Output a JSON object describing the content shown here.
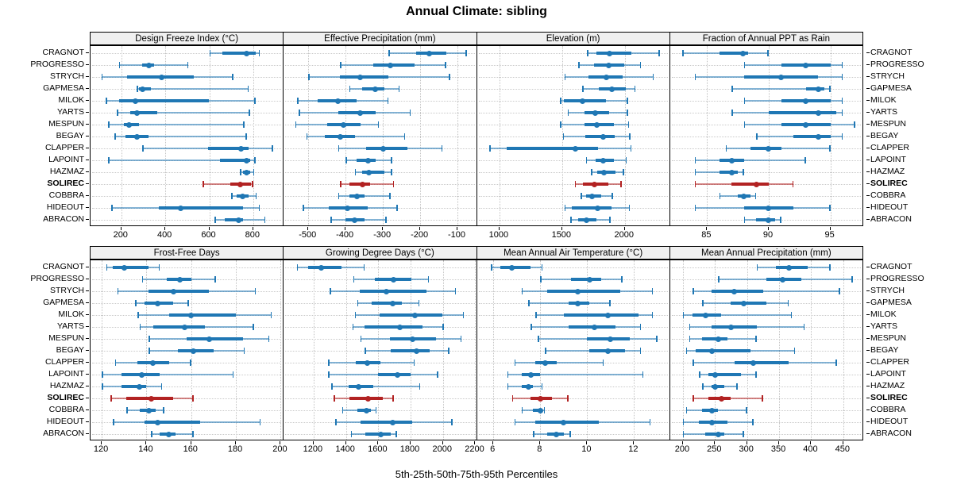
{
  "title": "Annual Climate: sibling",
  "caption": "5th-25th-50th-75th-95th Percentiles",
  "colors": {
    "series": "#1f77b4",
    "highlight": "#b22222",
    "strip_bg": "#f0f0f0",
    "grid_line": "#c6c6c6",
    "panel_border": "#000000"
  },
  "sites": [
    "CRAGNOT",
    "PROGRESSO",
    "STRYCH",
    "GAPMESA",
    "MILOK",
    "YARTS",
    "MESPUN",
    "BEGAY",
    "CLAPPER",
    "LAPOINT",
    "HAZMAZ",
    "SOLIREC",
    "COBBRA",
    "HIDEOUT",
    "ABRACON"
  ],
  "highlight_site": "SOLIREC",
  "chart_data": {
    "type": "dotplot",
    "subtype": "trellis-percentile-intervals",
    "percentiles": [
      "5th",
      "25th",
      "50th",
      "75th",
      "95th"
    ],
    "layout": {
      "rows": 2,
      "cols": 4,
      "grid": "dotted",
      "legend_position": "none"
    },
    "panels": [
      {
        "title": "Design Freeze Index (°C)",
        "grid_row": 0,
        "grid_col": 0,
        "xlim": [
          60,
          935
        ],
        "ticks": [
          200,
          400,
          600,
          800
        ],
        "values": [
          [
            600,
            660,
            770,
            810,
            830
          ],
          [
            190,
            295,
            325,
            350,
            505
          ],
          [
            110,
            225,
            385,
            530,
            710
          ],
          [
            270,
            280,
            295,
            335,
            780
          ],
          [
            130,
            190,
            265,
            600,
            810
          ],
          [
            180,
            240,
            270,
            365,
            785
          ],
          [
            140,
            210,
            235,
            280,
            760
          ],
          [
            170,
            220,
            270,
            325,
            770
          ],
          [
            295,
            595,
            745,
            780,
            890
          ],
          [
            140,
            650,
            770,
            785,
            810
          ],
          [
            740,
            755,
            770,
            785,
            805
          ],
          [
            570,
            695,
            740,
            790,
            800
          ],
          [
            700,
            725,
            750,
            780,
            815
          ],
          [
            155,
            370,
            470,
            755,
            830
          ],
          [
            625,
            670,
            735,
            755,
            855
          ]
        ]
      },
      {
        "title": "Effective Precipitation (mm)",
        "grid_row": 0,
        "grid_col": 1,
        "xlim": [
          -566,
          -50
        ],
        "ticks": [
          -500,
          -400,
          -300,
          -200,
          -100
        ],
        "values": [
          [
            -285,
            -210,
            -175,
            -130,
            -75
          ],
          [
            -415,
            -325,
            -280,
            -215,
            -130
          ],
          [
            -500,
            -415,
            -360,
            -285,
            -120
          ],
          [
            -390,
            -355,
            -320,
            -295,
            -255
          ],
          [
            -530,
            -475,
            -420,
            -370,
            -285
          ],
          [
            -525,
            -420,
            -360,
            -320,
            -225
          ],
          [
            -535,
            -450,
            -405,
            -360,
            -310
          ],
          [
            -505,
            -455,
            -415,
            -375,
            -240
          ],
          [
            -420,
            -345,
            -300,
            -235,
            -140
          ],
          [
            -400,
            -370,
            -340,
            -320,
            -275
          ],
          [
            -375,
            -355,
            -338,
            -295,
            -275
          ],
          [
            -415,
            -390,
            -355,
            -335,
            -270
          ],
          [
            -420,
            -390,
            -370,
            -350,
            -280
          ],
          [
            -515,
            -445,
            -395,
            -340,
            -260
          ],
          [
            -440,
            -400,
            -375,
            -350,
            -290
          ]
        ]
      },
      {
        "title": "Elevation (m)",
        "grid_row": 0,
        "grid_col": 2,
        "xlim": [
          820,
          2355
        ],
        "ticks": [
          1000,
          1500,
          2000
        ],
        "values": [
          [
            1700,
            1775,
            1880,
            2050,
            2280
          ],
          [
            1630,
            1755,
            1870,
            1995,
            2130
          ],
          [
            1520,
            1710,
            1850,
            1980,
            2230
          ],
          [
            1660,
            1795,
            1895,
            2005,
            2085
          ],
          [
            1485,
            1515,
            1665,
            1850,
            2025
          ],
          [
            1545,
            1680,
            1765,
            1875,
            2025
          ],
          [
            1485,
            1680,
            1775,
            1910,
            2035
          ],
          [
            1505,
            1685,
            1825,
            1920,
            2045
          ],
          [
            920,
            1055,
            1605,
            1785,
            2055
          ],
          [
            1690,
            1765,
            1830,
            1910,
            2015
          ],
          [
            1730,
            1780,
            1835,
            1925,
            1995
          ],
          [
            1600,
            1665,
            1760,
            1870,
            1975
          ],
          [
            1650,
            1690,
            1740,
            1810,
            1905
          ],
          [
            1520,
            1575,
            1785,
            1895,
            2040
          ],
          [
            1565,
            1625,
            1695,
            1775,
            1885
          ]
        ]
      },
      {
        "title": "Fraction of Annual PPT as Rain",
        "grid_row": 0,
        "grid_col": 3,
        "xlim": [
          82,
          97.6
        ],
        "ticks": [
          85,
          90,
          95
        ],
        "values": [
          [
            83,
            86,
            87.9,
            88.3,
            90
          ],
          [
            88,
            91,
            93,
            95,
            96
          ],
          [
            84,
            88,
            91,
            94,
            96
          ],
          [
            87,
            93,
            94,
            94.5,
            95
          ],
          [
            88,
            91,
            93,
            95,
            96
          ],
          [
            87,
            90,
            94,
            95.5,
            96
          ],
          [
            88,
            91,
            93,
            95,
            97
          ],
          [
            89,
            92,
            94,
            95,
            96
          ],
          [
            86.5,
            88.5,
            90,
            91,
            95
          ],
          [
            84,
            86,
            87,
            88,
            93
          ],
          [
            84,
            86,
            87,
            87.5,
            88
          ],
          [
            84,
            87,
            89,
            90,
            92
          ],
          [
            86,
            87.5,
            88,
            88.5,
            89
          ],
          [
            84,
            88,
            90,
            92,
            95
          ],
          [
            88,
            89,
            90,
            90.5,
            91
          ]
        ]
      },
      {
        "title": "Frost-Free Days",
        "grid_row": 1,
        "grid_col": 0,
        "xlim": [
          115,
          201
        ],
        "ticks": [
          120,
          140,
          160,
          180,
          200
        ],
        "values": [
          [
            122,
            125,
            130,
            141,
            146
          ],
          [
            138,
            149,
            155,
            160,
            171
          ],
          [
            127,
            141,
            152,
            168,
            189
          ],
          [
            135,
            139,
            145,
            152,
            159
          ],
          [
            136,
            150,
            160,
            180,
            196
          ],
          [
            137,
            143,
            157,
            166,
            188
          ],
          [
            141,
            158,
            168,
            183,
            195
          ],
          [
            141,
            154,
            161,
            170,
            184
          ],
          [
            126,
            136,
            143,
            150,
            160
          ],
          [
            120,
            129,
            138,
            146,
            179
          ],
          [
            120,
            129,
            137,
            140,
            147
          ],
          [
            124,
            131,
            142,
            152,
            161
          ],
          [
            131,
            137,
            141,
            144,
            148
          ],
          [
            125,
            139,
            145,
            164,
            191
          ],
          [
            142,
            146,
            150,
            153,
            161
          ]
        ]
      },
      {
        "title": "Growing Degree Days (°C)",
        "grid_row": 1,
        "grid_col": 1,
        "xlim": [
          1015,
          2205
        ],
        "ticks": [
          1200,
          1400,
          1600,
          1800,
          2000,
          2200
        ],
        "values": [
          [
            1095,
            1165,
            1245,
            1370,
            1515
          ],
          [
            1445,
            1580,
            1695,
            1805,
            1915
          ],
          [
            1300,
            1485,
            1650,
            1900,
            2080
          ],
          [
            1470,
            1560,
            1690,
            1745,
            1855
          ],
          [
            1455,
            1610,
            1825,
            1995,
            2130
          ],
          [
            1440,
            1515,
            1735,
            1875,
            2005
          ],
          [
            1490,
            1670,
            1810,
            1955,
            2115
          ],
          [
            1515,
            1675,
            1835,
            1920,
            2040
          ],
          [
            1290,
            1460,
            1530,
            1615,
            1825
          ],
          [
            1290,
            1600,
            1720,
            1800,
            1970
          ],
          [
            1310,
            1415,
            1480,
            1570,
            1860
          ],
          [
            1325,
            1420,
            1535,
            1630,
            1695
          ],
          [
            1375,
            1470,
            1525,
            1555,
            1590
          ],
          [
            1335,
            1490,
            1690,
            1810,
            2060
          ],
          [
            1430,
            1520,
            1615,
            1675,
            1715
          ]
        ]
      },
      {
        "title": "Mean Annual Air Temperature (°C)",
        "grid_row": 1,
        "grid_col": 2,
        "xlim": [
          5.3,
          13.5
        ],
        "ticks": [
          6,
          8,
          10,
          12
        ],
        "values": [
          [
            5.9,
            6.3,
            6.8,
            7.6,
            8.1
          ],
          [
            8.0,
            9.3,
            10.1,
            10.6,
            11.5
          ],
          [
            7.2,
            8.3,
            9.6,
            11.4,
            12.8
          ],
          [
            7.5,
            9.2,
            9.6,
            10.1,
            11.0
          ],
          [
            7.8,
            9.0,
            10.9,
            12.2,
            12.8
          ],
          [
            7.6,
            9.2,
            10.3,
            11.2,
            12.3
          ],
          [
            7.9,
            10.0,
            11.0,
            11.8,
            13.0
          ],
          [
            8.2,
            10.1,
            10.9,
            11.6,
            12.3
          ],
          [
            6.9,
            7.8,
            8.2,
            8.7,
            10.7
          ],
          [
            6.6,
            7.2,
            7.6,
            8.0,
            12.4
          ],
          [
            6.6,
            7.2,
            7.5,
            7.7,
            8.1
          ],
          [
            6.8,
            7.6,
            8.0,
            8.5,
            9.2
          ],
          [
            7.2,
            7.7,
            8.0,
            8.1,
            8.2
          ],
          [
            6.9,
            7.8,
            9.0,
            10.5,
            12.7
          ],
          [
            7.7,
            8.3,
            8.7,
            9.0,
            9.3
          ]
        ]
      },
      {
        "title": "Mean Annual Precipitation (mm)",
        "grid_row": 1,
        "grid_col": 3,
        "xlim": [
          180,
          480
        ],
        "ticks": [
          200,
          250,
          300,
          350,
          400,
          450
        ],
        "values": [
          [
            315,
            345,
            365,
            395,
            430
          ],
          [
            255,
            330,
            355,
            385,
            465
          ],
          [
            215,
            245,
            280,
            325,
            445
          ],
          [
            230,
            275,
            295,
            330,
            365
          ],
          [
            200,
            215,
            235,
            260,
            370
          ],
          [
            210,
            245,
            275,
            315,
            390
          ],
          [
            210,
            230,
            255,
            270,
            315
          ],
          [
            205,
            220,
            245,
            305,
            375
          ],
          [
            215,
            280,
            310,
            365,
            440
          ],
          [
            225,
            240,
            250,
            290,
            315
          ],
          [
            230,
            245,
            250,
            265,
            285
          ],
          [
            215,
            240,
            260,
            275,
            325
          ],
          [
            205,
            230,
            245,
            255,
            300
          ],
          [
            200,
            225,
            245,
            270,
            310
          ],
          [
            200,
            235,
            255,
            265,
            295
          ]
        ]
      }
    ]
  }
}
